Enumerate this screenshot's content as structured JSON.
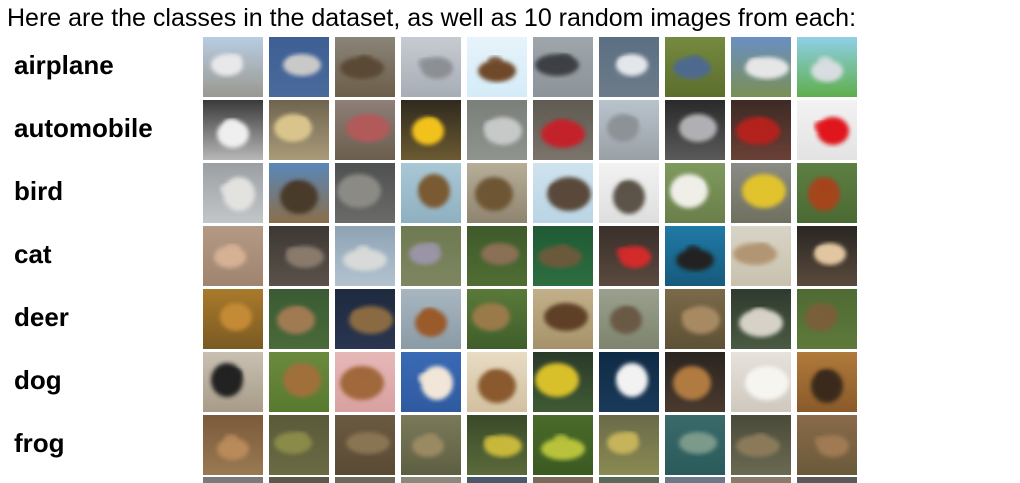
{
  "heading": "Here are the classes in the dataset, as well as 10 random images from each:",
  "classes": [
    {
      "label": "airplane",
      "images": [
        {
          "name": "airplane-on-tarmac-thumbnail",
          "sky": "#b8cde3",
          "ground": "#9a9890",
          "subject": "#e8e8ea"
        },
        {
          "name": "fighter-jet-blue-sky-thumbnail",
          "sky": "#3d5f93",
          "ground": "#4a6a9c",
          "subject": "#c9c9c9"
        },
        {
          "name": "propeller-plane-dirt-thumbnail",
          "sky": "#8a8478",
          "ground": "#6c5e49",
          "subject": "#5a4a36"
        },
        {
          "name": "silver-airliner-thumbnail",
          "sky": "#c7cbd1",
          "ground": "#a7adb6",
          "subject": "#8c8f94"
        },
        {
          "name": "jet-in-pale-sky-thumbnail",
          "sky": "#e7f3fb",
          "ground": "#d4ecf8",
          "subject": "#6f4a2b"
        },
        {
          "name": "small-plane-distance-thumbnail",
          "sky": "#9fa6ab",
          "ground": "#8c9399",
          "subject": "#3e4145"
        },
        {
          "name": "airliner-dark-sky-thumbnail",
          "sky": "#5b6f84",
          "ground": "#6d7b88",
          "subject": "#e4e7ea"
        },
        {
          "name": "plane-over-grass-thumbnail",
          "sky": "#768a3f",
          "ground": "#5c6e2c",
          "subject": "#4e6a8e"
        },
        {
          "name": "jet-on-runway-thumbnail",
          "sky": "#6a8fc3",
          "ground": "#7a8f55",
          "subject": "#e6e6e6"
        },
        {
          "name": "plane-green-field-thumbnail",
          "sky": "#8fd0e6",
          "ground": "#5fae4b",
          "subject": "#d7dde0"
        }
      ]
    },
    {
      "label": "automobile",
      "images": [
        {
          "name": "white-car-front-thumbnail",
          "sky": "#3a3a3a",
          "ground": "#b7b7b7",
          "subject": "#efefef"
        },
        {
          "name": "gold-convertible-thumbnail",
          "sky": "#6f6450",
          "ground": "#a99a78",
          "subject": "#d9c58c"
        },
        {
          "name": "decorated-car-thumbnail",
          "sky": "#8e7f77",
          "ground": "#6b5e4e",
          "subject": "#b25a5a"
        },
        {
          "name": "yellow-sports-car-thumbnail",
          "sky": "#2f2a1f",
          "ground": "#6b5a31",
          "subject": "#f2c21a"
        },
        {
          "name": "silver-sedan-thumbnail",
          "sky": "#7b7f7a",
          "ground": "#8f948e",
          "subject": "#c6c9c7"
        },
        {
          "name": "red-roadster-thumbnail",
          "sky": "#5f5a52",
          "ground": "#7a746b",
          "subject": "#c4232b"
        },
        {
          "name": "grey-hatchback-thumbnail",
          "sky": "#b9c3cc",
          "ground": "#9aa0a6",
          "subject": "#8d9297"
        },
        {
          "name": "silver-car-rear-thumbnail",
          "sky": "#2a2a2a",
          "ground": "#5a5a5a",
          "subject": "#b0b0b4"
        },
        {
          "name": "red-coupe-thumbnail",
          "sky": "#3d2b25",
          "ground": "#6a4036",
          "subject": "#b3221f"
        },
        {
          "name": "red-car-white-bg-thumbnail",
          "sky": "#f2f2f2",
          "ground": "#e3e3e3",
          "subject": "#e0171b"
        }
      ]
    },
    {
      "label": "bird",
      "images": [
        {
          "name": "white-bird-closeup-thumbnail",
          "sky": "#9b9fa3",
          "ground": "#c3c6c8",
          "subject": "#e2e2df"
        },
        {
          "name": "ostrich-horizon-thumbnail",
          "sky": "#5a87b9",
          "ground": "#8a6e4a",
          "subject": "#4a3a2a"
        },
        {
          "name": "bird-in-cage-thumbnail",
          "sky": "#4f5150",
          "ground": "#6a6b68",
          "subject": "#8b8a84"
        },
        {
          "name": "bird-on-branch-thumbnail",
          "sky": "#a9c8d6",
          "ground": "#8fb0c0",
          "subject": "#7a5a33"
        },
        {
          "name": "sparrow-ground-thumbnail",
          "sky": "#b7ae98",
          "ground": "#8f8470",
          "subject": "#6e5634"
        },
        {
          "name": "small-bird-wire-thumbnail",
          "sky": "#cfe3ee",
          "ground": "#b9d4e4",
          "subject": "#5a4a3a"
        },
        {
          "name": "ostrich-head-thumbnail",
          "sky": "#f2f2f2",
          "ground": "#dedede",
          "subject": "#5b5248"
        },
        {
          "name": "rooster-white-thumbnail",
          "sky": "#7e9a5e",
          "ground": "#6a7e4a",
          "subject": "#efefe8"
        },
        {
          "name": "yellow-bird-perch-thumbnail",
          "sky": "#8a8b84",
          "ground": "#6f705f",
          "subject": "#e1c32d"
        },
        {
          "name": "rooster-brown-thumbnail",
          "sky": "#5e7f43",
          "ground": "#4a6a33",
          "subject": "#a5451f"
        }
      ]
    },
    {
      "label": "cat",
      "images": [
        {
          "name": "orange-cat-face-thumbnail",
          "sky": "#b49a84",
          "ground": "#9f8570",
          "subject": "#d6b194"
        },
        {
          "name": "tabby-cat-dark-thumbnail",
          "sky": "#3d3834",
          "ground": "#5a524a",
          "subject": "#8a7a6c"
        },
        {
          "name": "cat-light-blue-thumbnail",
          "sky": "#8fa3b5",
          "ground": "#b2c2cf",
          "subject": "#d7dad8"
        },
        {
          "name": "cat-in-grass-thumbnail",
          "sky": "#6e7a52",
          "ground": "#7d8660",
          "subject": "#9a94a6"
        },
        {
          "name": "cat-in-leaves-thumbnail",
          "sky": "#3f5a2a",
          "ground": "#4f6d33",
          "subject": "#8a6f55"
        },
        {
          "name": "cat-green-bg-thumbnail",
          "sky": "#1f5a34",
          "ground": "#2d6e40",
          "subject": "#6a5a3a"
        },
        {
          "name": "cat-red-toy-thumbnail",
          "sky": "#3a2f2a",
          "ground": "#5a4a3f",
          "subject": "#d32b2b"
        },
        {
          "name": "black-cat-blue-thumbnail",
          "sky": "#1f7aa6",
          "ground": "#175a7c",
          "subject": "#232323"
        },
        {
          "name": "cat-beige-thumbnail",
          "sky": "#d8d4c6",
          "ground": "#c8c1ae",
          "subject": "#b29673"
        },
        {
          "name": "cat-lying-dark-thumbnail",
          "sky": "#2a2623",
          "ground": "#5a4a3c",
          "subject": "#e2c6a2"
        }
      ]
    },
    {
      "label": "deer",
      "images": [
        {
          "name": "deer-orange-forest-thumbnail",
          "sky": "#a97a2b",
          "ground": "#7a5a22",
          "subject": "#c48a36"
        },
        {
          "name": "deer-green-forest-thumbnail",
          "sky": "#3a5a33",
          "ground": "#4a6a3a",
          "subject": "#a07a52"
        },
        {
          "name": "stag-dark-thumbnail",
          "sky": "#1e2a3e",
          "ground": "#2a3550",
          "subject": "#8a6a42"
        },
        {
          "name": "deer-walking-thumbnail",
          "sky": "#a8b6c0",
          "ground": "#8a9ba6",
          "subject": "#9a5a2a"
        },
        {
          "name": "deer-in-foliage-thumbnail",
          "sky": "#5a7a3a",
          "ground": "#3f5e2a",
          "subject": "#9a7a4a"
        },
        {
          "name": "stag-antlers-thumbnail",
          "sky": "#c2b08a",
          "ground": "#a6926a",
          "subject": "#5e4026"
        },
        {
          "name": "moose-grey-thumbnail",
          "sky": "#9aa08e",
          "ground": "#7d846d",
          "subject": "#6a5a44"
        },
        {
          "name": "deer-brush-thumbnail",
          "sky": "#7a6a4a",
          "ground": "#5e5034",
          "subject": "#a88a62"
        },
        {
          "name": "deer-dark-woods-thumbnail",
          "sky": "#2f3a2e",
          "ground": "#4a5a42",
          "subject": "#d6d2c8"
        },
        {
          "name": "deer-lying-grass-thumbnail",
          "sky": "#4f6a33",
          "ground": "#5e7a3a",
          "subject": "#7a5e3a"
        }
      ]
    },
    {
      "label": "dog",
      "images": [
        {
          "name": "black-white-dog-thumbnail",
          "sky": "#c8c0b2",
          "ground": "#a89c88",
          "subject": "#222222"
        },
        {
          "name": "dog-grass-thumbnail",
          "sky": "#6a8a3e",
          "ground": "#587a2f",
          "subject": "#a0703a"
        },
        {
          "name": "puppy-pink-blanket-thumbnail",
          "sky": "#e6b8b8",
          "ground": "#d9a0a0",
          "subject": "#a0683a"
        },
        {
          "name": "small-white-dog-thumbnail",
          "sky": "#3a6ab5",
          "ground": "#2f5aa0",
          "subject": "#f1e6d8"
        },
        {
          "name": "pekingese-dog-thumbnail",
          "sky": "#e8dcc4",
          "ground": "#d2c0a0",
          "subject": "#8a5a2e"
        },
        {
          "name": "dog-yellow-toy-thumbnail",
          "sky": "#2a3a2a",
          "ground": "#3f5a33",
          "subject": "#d8c02a"
        },
        {
          "name": "white-dog-dark-bg-thumbnail",
          "sky": "#0f2a45",
          "ground": "#1a3a5a",
          "subject": "#f2f2f2"
        },
        {
          "name": "spaniel-dark-thumbnail",
          "sky": "#2a2520",
          "ground": "#4a3a2e",
          "subject": "#b07a40"
        },
        {
          "name": "fluffy-white-dog-thumbnail",
          "sky": "#e6e2dc",
          "ground": "#cfc8bd",
          "subject": "#f7f5f0"
        },
        {
          "name": "german-shepherd-thumbnail",
          "sky": "#b07a3a",
          "ground": "#8a5a2a",
          "subject": "#3a2a1a"
        }
      ]
    },
    {
      "label": "frog",
      "images": [
        {
          "name": "brown-frog-thumbnail",
          "sky": "#7a5a3a",
          "ground": "#9a7a52",
          "subject": "#b98a5a"
        },
        {
          "name": "frog-green-thumbnail",
          "sky": "#5a5a3a",
          "ground": "#6a6a44",
          "subject": "#8a8a4a"
        },
        {
          "name": "toad-dirt-thumbnail",
          "sky": "#6a5a42",
          "ground": "#5a4a34",
          "subject": "#8a7452"
        },
        {
          "name": "frog-mossy-thumbnail",
          "sky": "#7a7a5a",
          "ground": "#5e5e42",
          "subject": "#9a8a62"
        },
        {
          "name": "frog-yellow-spots-thumbnail",
          "sky": "#3a4a2a",
          "ground": "#5a6a3a",
          "subject": "#c8b83a"
        },
        {
          "name": "green-frog-leaves-thumbnail",
          "sky": "#4a6a2a",
          "ground": "#3a5a22",
          "subject": "#b8c23a"
        },
        {
          "name": "frog-yellowish-thumbnail",
          "sky": "#6a6a4a",
          "ground": "#8a8a52",
          "subject": "#c6b45a"
        },
        {
          "name": "frog-teal-water-thumbnail",
          "sky": "#3a6a6a",
          "ground": "#2a5a5a",
          "subject": "#7a9a8a"
        },
        {
          "name": "frog-dark-grass-thumbnail",
          "sky": "#4a4a3a",
          "ground": "#6a6a52",
          "subject": "#8a7a5a"
        },
        {
          "name": "frog-spotted-brown-thumbnail",
          "sky": "#8a6a4a",
          "ground": "#6a5a3a",
          "subject": "#a07a52"
        }
      ]
    }
  ],
  "partial_row": [
    {
      "name": "partial-thumbnail-1",
      "color": "#7a7a7a"
    },
    {
      "name": "partial-thumbnail-2",
      "color": "#5a5a4a"
    },
    {
      "name": "partial-thumbnail-3",
      "color": "#6a6a5a"
    },
    {
      "name": "partial-thumbnail-4",
      "color": "#8a8a7a"
    },
    {
      "name": "partial-thumbnail-5",
      "color": "#4a5a6a"
    },
    {
      "name": "partial-thumbnail-6",
      "color": "#7a6a5a"
    },
    {
      "name": "partial-thumbnail-7",
      "color": "#5a6a5a"
    },
    {
      "name": "partial-thumbnail-8",
      "color": "#6a7a8a"
    },
    {
      "name": "partial-thumbnail-9",
      "color": "#8a7a6a"
    },
    {
      "name": "partial-thumbnail-10",
      "color": "#5a5a5a"
    }
  ]
}
